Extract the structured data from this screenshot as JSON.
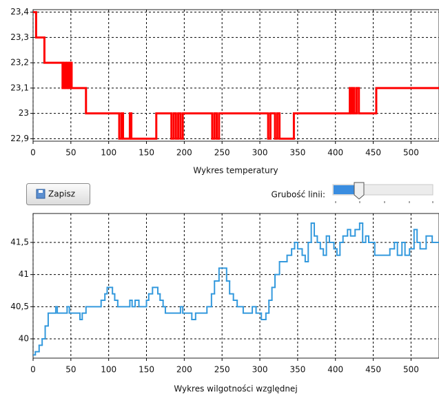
{
  "chart_data": [
    {
      "type": "line",
      "drawstyle": "steps-post",
      "title": "Wykres temperatury",
      "color": "#ff0000",
      "line_width": 3,
      "grid": true,
      "xlim": [
        0,
        537
      ],
      "ylim": [
        22.89,
        23.41
      ],
      "xticks": [
        0,
        50,
        100,
        150,
        200,
        250,
        300,
        350,
        400,
        450,
        500
      ],
      "yticks": [
        {
          "value": 22.9,
          "label": "22,9"
        },
        23,
        {
          "value": 23.1,
          "label": "23,1"
        },
        {
          "value": 23.2,
          "label": "23,2"
        },
        {
          "value": 23.3,
          "label": "23,3"
        },
        {
          "value": 23.4,
          "label": "23,4"
        }
      ],
      "x": [
        0,
        4,
        15,
        39,
        41,
        43,
        45,
        47,
        49,
        51,
        70,
        114,
        117,
        119,
        128,
        130,
        163,
        183,
        186,
        189,
        192,
        195,
        198,
        237,
        240,
        243,
        246,
        311,
        314,
        320,
        323,
        326,
        345,
        419,
        421,
        423,
        425,
        428,
        431,
        454,
        537
      ],
      "values": [
        23.4,
        23.3,
        23.2,
        23.1,
        23.2,
        23.1,
        23.2,
        23.1,
        23.2,
        23.1,
        23.0,
        22.9,
        23.0,
        22.9,
        23.0,
        22.9,
        23.0,
        22.9,
        23.0,
        22.9,
        23.0,
        22.9,
        23.0,
        22.9,
        23.0,
        22.9,
        23.0,
        22.9,
        23.0,
        22.9,
        23.0,
        22.9,
        23.0,
        23.1,
        23.0,
        23.1,
        23.0,
        23.1,
        23.0,
        23.1,
        23.1
      ]
    },
    {
      "type": "line",
      "drawstyle": "steps-post",
      "title": "Wykres wilgotności względnej",
      "color": "#3399dd",
      "line_width": 2,
      "grid": true,
      "xlim": [
        0,
        537
      ],
      "ylim": [
        39.7,
        41.95
      ],
      "xticks": [
        0,
        50,
        100,
        150,
        200,
        250,
        300,
        350,
        400,
        450,
        500
      ],
      "yticks": [
        40,
        {
          "value": 40.5,
          "label": "40,5"
        },
        41,
        {
          "value": 41.5,
          "label": "41,5"
        }
      ],
      "x": [
        0,
        3,
        8,
        12,
        16,
        20,
        30,
        32,
        45,
        48,
        62,
        65,
        70,
        90,
        95,
        98,
        105,
        108,
        112,
        128,
        131,
        135,
        140,
        150,
        153,
        158,
        165,
        168,
        172,
        175,
        195,
        198,
        210,
        215,
        230,
        236,
        240,
        246,
        256,
        260,
        265,
        270,
        278,
        290,
        295,
        302,
        308,
        312,
        316,
        320,
        326,
        336,
        342,
        346,
        350,
        356,
        360,
        364,
        368,
        372,
        376,
        380,
        384,
        388,
        392,
        398,
        402,
        406,
        410,
        416,
        420,
        426,
        432,
        436,
        440,
        444,
        452,
        472,
        478,
        482,
        488,
        492,
        498,
        504,
        508,
        512,
        520,
        528,
        537
      ],
      "values": [
        39.75,
        39.8,
        39.9,
        40.0,
        40.2,
        40.4,
        40.5,
        40.4,
        40.5,
        40.4,
        40.3,
        40.4,
        40.5,
        40.6,
        40.7,
        40.8,
        40.7,
        40.6,
        40.5,
        40.6,
        40.5,
        40.6,
        40.5,
        40.6,
        40.7,
        40.8,
        40.7,
        40.6,
        40.5,
        40.4,
        40.5,
        40.4,
        40.3,
        40.4,
        40.5,
        40.7,
        40.9,
        41.1,
        40.9,
        40.7,
        40.6,
        40.5,
        40.4,
        40.5,
        40.4,
        40.3,
        40.4,
        40.6,
        40.8,
        41.0,
        41.2,
        41.3,
        41.4,
        41.5,
        41.4,
        41.3,
        41.2,
        41.5,
        41.8,
        41.6,
        41.5,
        41.4,
        41.3,
        41.6,
        41.5,
        41.4,
        41.3,
        41.5,
        41.6,
        41.7,
        41.6,
        41.7,
        41.8,
        41.5,
        41.6,
        41.5,
        41.3,
        41.4,
        41.5,
        41.3,
        41.5,
        41.3,
        41.4,
        41.7,
        41.5,
        41.4,
        41.6,
        41.5,
        41.5
      ]
    }
  ],
  "ui": {
    "save_button": "Zapisz",
    "line_width_label": "Grubość linii:"
  }
}
